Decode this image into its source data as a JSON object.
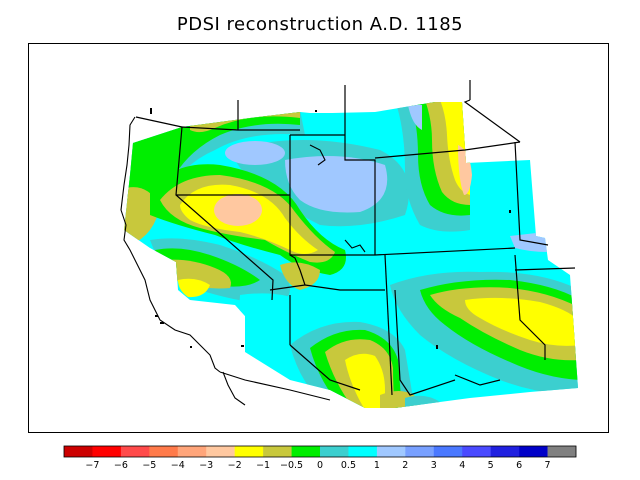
{
  "title": "PDSI reconstruction A.D. 1185",
  "legend": {
    "bins": [
      {
        "color": "#cc0000"
      },
      {
        "color": "#ff0000"
      },
      {
        "color": "#ff4a4a"
      },
      {
        "color": "#ff7a4a"
      },
      {
        "color": "#ffa57a"
      },
      {
        "color": "#ffc8a0"
      },
      {
        "color": "#ffff00"
      },
      {
        "color": "#c8c83c"
      },
      {
        "color": "#00ee00"
      },
      {
        "color": "#3ccfcf"
      },
      {
        "color": "#00ffff"
      },
      {
        "color": "#a0c8ff"
      },
      {
        "color": "#78a0ff"
      },
      {
        "color": "#4a78ff"
      },
      {
        "color": "#4a4aff"
      },
      {
        "color": "#2020e0"
      },
      {
        "color": "#0000c8"
      },
      {
        "color": "#808080"
      }
    ],
    "tick_labels": [
      "−7",
      "−6",
      "−5",
      "−4",
      "−3",
      "−2",
      "−1",
      "−0.5",
      "0",
      "0.5",
      "1",
      "2",
      "3",
      "4",
      "5",
      "6",
      "7"
    ]
  },
  "colors": {
    "frame": "#000000",
    "state_lines": "#000000",
    "background": "#ffffff"
  }
}
